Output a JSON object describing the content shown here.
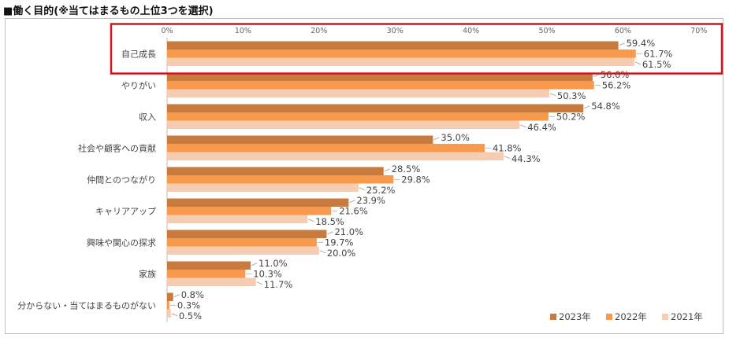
{
  "chart_data": {
    "type": "bar",
    "orientation": "horizontal",
    "title": "■働く目的(※当てはまるもの上位3つを選択)",
    "categories": [
      "自己成長",
      "やりがい",
      "収入",
      "社会や顧客への貢献",
      "仲間とのつながり",
      "キャリアアップ",
      "興味や関心の探求",
      "家族",
      "分からない・当てはまるものがない"
    ],
    "series": [
      {
        "name": "2023年",
        "color": "#c87b3f",
        "values": [
          59.4,
          56.0,
          54.8,
          35.0,
          28.5,
          23.9,
          21.0,
          11.0,
          0.8
        ]
      },
      {
        "name": "2022年",
        "color": "#f79a4b",
        "values": [
          61.7,
          56.2,
          50.2,
          41.8,
          29.8,
          21.6,
          19.7,
          10.3,
          0.3
        ]
      },
      {
        "name": "2021年",
        "color": "#f8ccb0",
        "values": [
          61.5,
          50.3,
          46.4,
          44.3,
          25.2,
          18.5,
          20.0,
          11.7,
          0.5
        ]
      }
    ],
    "xlim": [
      0,
      70
    ],
    "xticks": [
      "0%",
      "10%",
      "20%",
      "30%",
      "40%",
      "50%",
      "60%",
      "70%"
    ],
    "value_suffix": "%",
    "legend_position": "bottom-right",
    "grid": false,
    "highlight": {
      "category": "自己成長",
      "color": "#d0161c"
    }
  }
}
